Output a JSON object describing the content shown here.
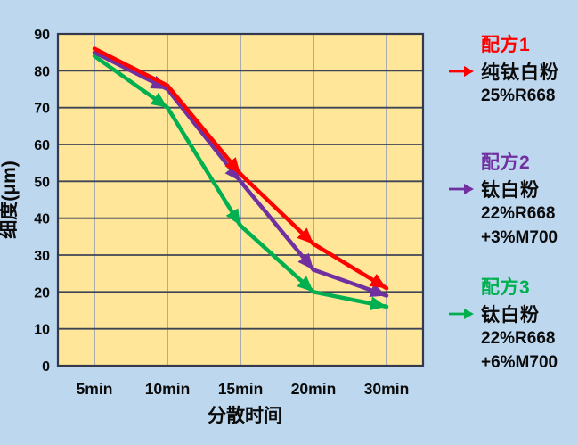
{
  "colors": {
    "background": "#BDD7EE",
    "plot_bg": "#FFE699",
    "grid_major": "#3F4556",
    "grid_minor": "#9FA6B2",
    "border": "#33394A",
    "axis_text": "#0B0B0B"
  },
  "chart_data": {
    "type": "line",
    "title": "",
    "xlabel": "分散时间",
    "ylabel": "细度(μm)",
    "categories": [
      "5min",
      "10min",
      "15min",
      "20min",
      "30min"
    ],
    "series": [
      {
        "name": "配方1 纯钛白粉 25%R668",
        "color": "#FF0000",
        "values": [
          86,
          76,
          52,
          33,
          21
        ],
        "arrow_points": [
          2,
          3,
          4
        ]
      },
      {
        "name": "配方2 钛白粉 22%R668+3%M700",
        "color": "#7030A0",
        "values": [
          85,
          75,
          50,
          26,
          19
        ],
        "arrow_points": [
          1,
          2,
          3,
          4
        ]
      },
      {
        "name": "配方3 钛白粉 22%R668+6%M700",
        "color": "#00B050",
        "values": [
          84,
          70,
          38,
          20,
          16
        ],
        "arrow_points": [
          1,
          2,
          3,
          4
        ]
      }
    ],
    "ylim": [
      0,
      90
    ],
    "ytick_step": 10,
    "grid": true,
    "legend_position": "right"
  },
  "legend": {
    "groups": [
      {
        "title": "配方1",
        "color": "#FF0000",
        "lines": [
          "纯钛白粉",
          "25%R668"
        ]
      },
      {
        "title": "配方2",
        "color": "#7030A0",
        "lines": [
          "钛白粉",
          "22%R668",
          "+3%M700"
        ]
      },
      {
        "title": "配方3",
        "color": "#00B050",
        "lines": [
          "钛白粉",
          "22%R668",
          "+6%M700"
        ]
      }
    ]
  }
}
